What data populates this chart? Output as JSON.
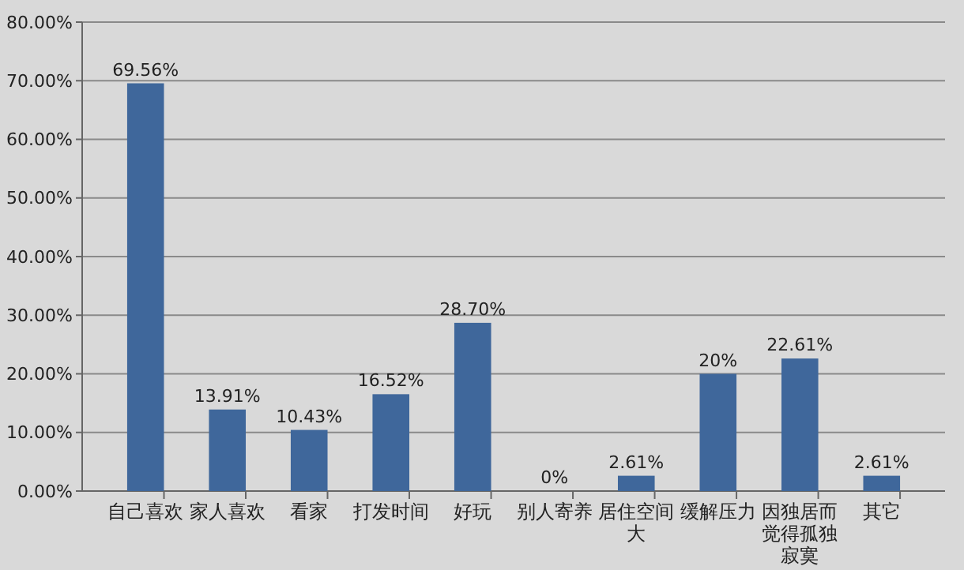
{
  "chart_data": {
    "type": "bar",
    "categories": [
      "自己喜欢",
      "家人喜欢",
      "看家",
      "打发时间",
      "好玩",
      "别人寄养",
      "居住空间大",
      "缓解压力",
      "因独居而觉得孤独寂寞",
      "其它"
    ],
    "values": [
      69.56,
      13.91,
      10.43,
      16.52,
      28.7,
      0,
      2.61,
      20,
      22.61,
      2.61
    ],
    "value_labels": [
      "69.56%",
      "13.91%",
      "10.43%",
      "16.52%",
      "28.70%",
      "0%",
      "2.61%",
      "20%",
      "22.61%",
      "2.61%"
    ],
    "color": "#3f679b",
    "ylim": [
      0,
      80
    ],
    "yticks": [
      {
        "value": 0,
        "label": "0.00%"
      },
      {
        "value": 10,
        "label": "10.00%"
      },
      {
        "value": 20,
        "label": "20.00%"
      },
      {
        "value": 30,
        "label": "30.00%"
      },
      {
        "value": 40,
        "label": "40.00%"
      },
      {
        "value": 50,
        "label": "50.00%"
      },
      {
        "value": 60,
        "label": "60.00%"
      },
      {
        "value": 70,
        "label": "70.00%"
      },
      {
        "value": 80,
        "label": "80.00%"
      }
    ],
    "grid": "y"
  }
}
